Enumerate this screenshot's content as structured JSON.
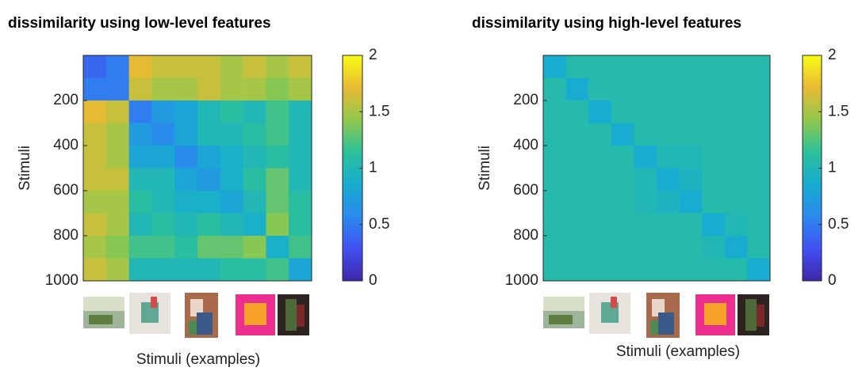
{
  "chart_data": [
    {
      "type": "heatmap",
      "title": "dissimilarity using low-level features",
      "ylabel": "Stimuli",
      "xlabel": "Stimuli (examples)",
      "xlim": [
        0,
        1000
      ],
      "ylim": [
        0,
        1000
      ],
      "reverse_y": true,
      "yticks": [
        200,
        400,
        600,
        800,
        1000
      ],
      "bins": [
        0,
        100,
        200,
        300,
        400,
        500,
        600,
        700,
        800,
        900,
        1000
      ],
      "clim": [
        0,
        2
      ],
      "cticks": [
        0,
        0.5,
        1,
        1.5,
        2
      ],
      "colormap": [
        "#3e26a8",
        "#4150f2",
        "#2b8aee",
        "#17adcf",
        "#2cc09a",
        "#91c84c",
        "#e9ba33",
        "#f9fb15"
      ],
      "matrix": [
        [
          0.4,
          0.5,
          1.7,
          1.6,
          1.6,
          1.6,
          1.5,
          1.6,
          1.5,
          1.6
        ],
        [
          0.5,
          0.5,
          1.6,
          1.5,
          1.5,
          1.6,
          1.5,
          1.5,
          1.4,
          1.5
        ],
        [
          1.7,
          1.6,
          0.5,
          0.7,
          0.8,
          1.0,
          1.1,
          1.0,
          1.2,
          1.0
        ],
        [
          1.6,
          1.5,
          0.7,
          0.6,
          0.8,
          1.0,
          1.0,
          1.1,
          1.2,
          1.0
        ],
        [
          1.6,
          1.5,
          0.8,
          0.8,
          0.6,
          0.8,
          0.9,
          1.0,
          1.1,
          1.0
        ],
        [
          1.6,
          1.6,
          1.0,
          1.0,
          0.8,
          0.7,
          0.9,
          1.1,
          1.3,
          1.0
        ],
        [
          1.5,
          1.5,
          1.1,
          1.0,
          0.9,
          0.9,
          0.8,
          1.0,
          1.3,
          1.1
        ],
        [
          1.6,
          1.5,
          1.0,
          1.1,
          1.0,
          1.1,
          1.0,
          0.9,
          1.4,
          1.1
        ],
        [
          1.5,
          1.4,
          1.2,
          1.2,
          1.1,
          1.3,
          1.3,
          1.4,
          0.9,
          1.2
        ],
        [
          1.6,
          1.5,
          1.0,
          1.0,
          1.0,
          1.0,
          1.1,
          1.1,
          1.2,
          0.8
        ]
      ]
    },
    {
      "type": "heatmap",
      "title": "dissimilarity using high-level features",
      "ylabel": "Stimuli",
      "xlabel": "Stimuli (examples)",
      "xlim": [
        0,
        1000
      ],
      "ylim": [
        0,
        1000
      ],
      "reverse_y": true,
      "yticks": [
        200,
        400,
        600,
        800,
        1000
      ],
      "bins": [
        0,
        100,
        200,
        300,
        400,
        500,
        600,
        700,
        800,
        900,
        1000
      ],
      "clim": [
        0,
        2
      ],
      "cticks": [
        0,
        0.5,
        1,
        1.5,
        2
      ],
      "colormap": [
        "#3e26a8",
        "#4150f2",
        "#2b8aee",
        "#17adcf",
        "#2cc09a",
        "#91c84c",
        "#e9ba33",
        "#f9fb15"
      ],
      "matrix": [
        [
          0.85,
          1.05,
          1.05,
          1.05,
          1.05,
          1.05,
          1.05,
          1.05,
          1.05,
          1.05
        ],
        [
          1.05,
          0.85,
          1.05,
          1.05,
          1.05,
          1.05,
          1.05,
          1.05,
          1.05,
          1.05
        ],
        [
          1.05,
          1.05,
          0.85,
          1.05,
          1.05,
          1.05,
          1.05,
          1.05,
          1.05,
          1.05
        ],
        [
          1.05,
          1.05,
          1.05,
          0.85,
          1.05,
          1.05,
          1.05,
          1.05,
          1.05,
          1.05
        ],
        [
          1.05,
          1.05,
          1.05,
          1.05,
          0.85,
          1.0,
          1.0,
          1.05,
          1.05,
          1.05
        ],
        [
          1.05,
          1.05,
          1.05,
          1.05,
          1.0,
          0.85,
          0.95,
          1.05,
          1.05,
          1.05
        ],
        [
          1.05,
          1.05,
          1.05,
          1.05,
          1.0,
          0.95,
          0.85,
          1.05,
          1.05,
          1.05
        ],
        [
          1.05,
          1.05,
          1.05,
          1.05,
          1.05,
          1.05,
          1.05,
          0.85,
          1.0,
          1.05
        ],
        [
          1.05,
          1.05,
          1.05,
          1.05,
          1.05,
          1.05,
          1.05,
          1.0,
          0.85,
          1.05
        ],
        [
          1.05,
          1.05,
          1.05,
          1.05,
          1.05,
          1.05,
          1.05,
          1.05,
          1.05,
          0.85
        ]
      ]
    }
  ]
}
